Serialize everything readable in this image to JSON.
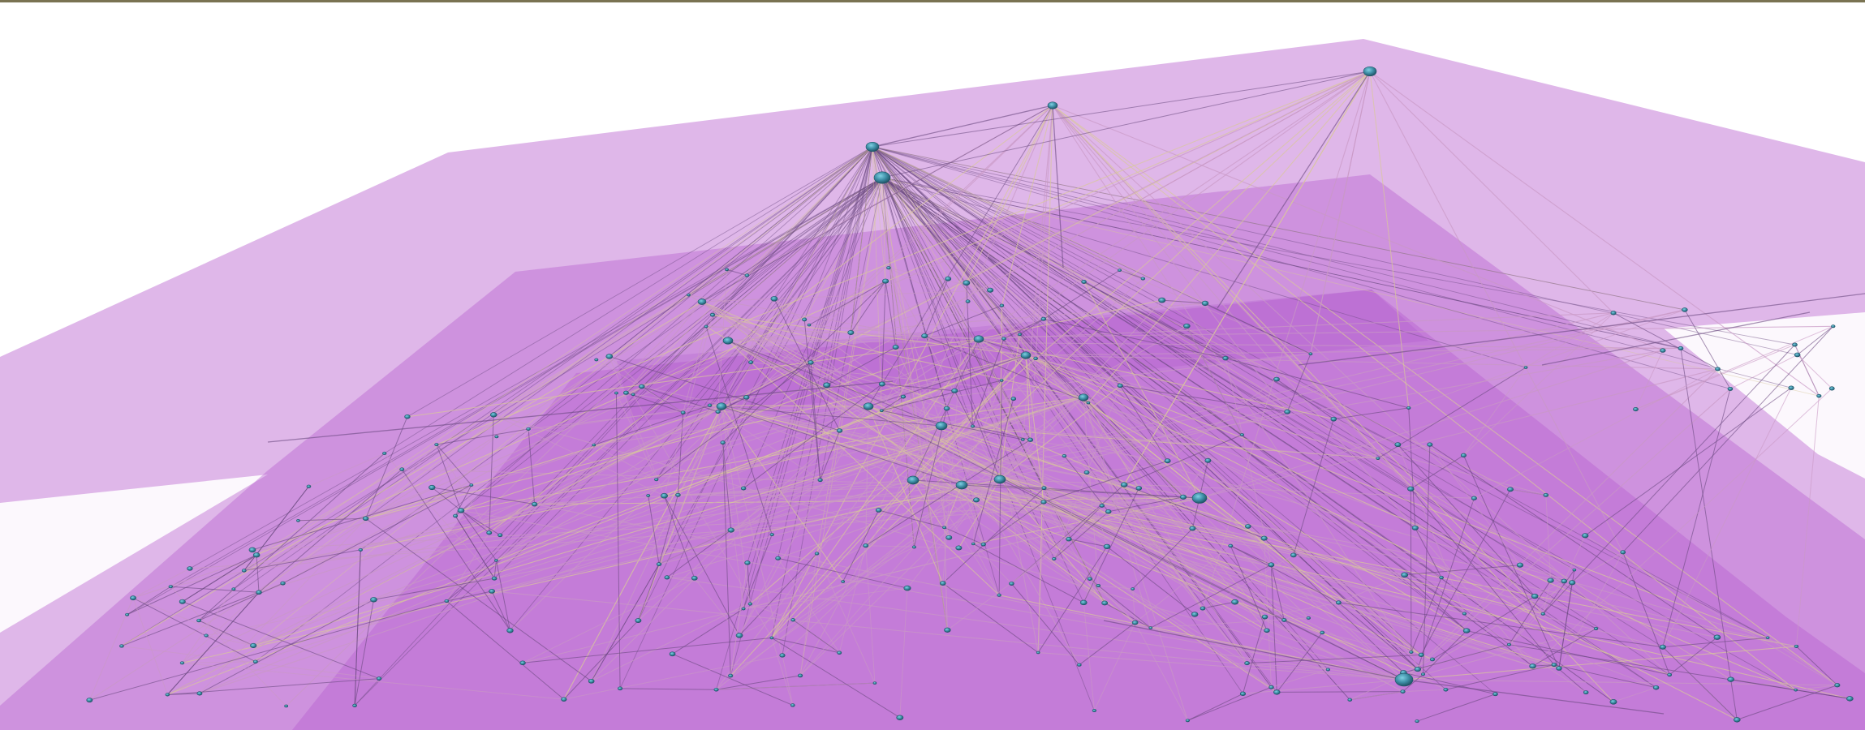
{
  "visualization": {
    "kind": "multilayer-network-3d",
    "colors": {
      "background": "#ffffff",
      "top_rule": "#7a7352",
      "layer_fill": "#b85fcf",
      "node_fill": "#3e8ea6",
      "node_highlight": "#7fd0e2",
      "edge_pink": "#c999c4",
      "edge_dark": "#6a4a80",
      "edge_gold": "#d8c79a"
    },
    "layers": [
      {
        "id": "layer-top",
        "opacity": 0.45
      },
      {
        "id": "layer-middle",
        "opacity": 0.5
      },
      {
        "id": "layer-bottom",
        "opacity": 0.5
      }
    ],
    "hubs": [
      {
        "id": "hub-a",
        "degree": "high"
      },
      {
        "id": "hub-b",
        "degree": "high"
      },
      {
        "id": "hub-c",
        "degree": "medium"
      },
      {
        "id": "hub-d",
        "degree": "medium"
      }
    ]
  }
}
